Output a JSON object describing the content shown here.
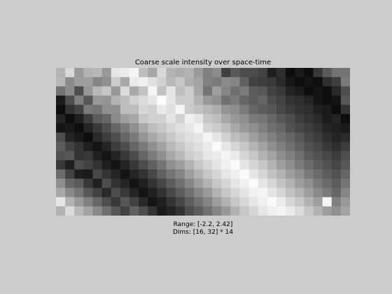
{
  "chart_data": {
    "type": "heatmap",
    "title": "Coarse scale intensity over space-time",
    "range_label": "Range: [-2.2, 2.42]",
    "dims_label": "Dims: [16, 32] * 14",
    "rows": 16,
    "cols": 32,
    "value_range": [
      -2.2,
      2.42
    ],
    "colormap": "gray",
    "axes_visible": false,
    "values": [
      [
        0.7,
        0.85,
        0.6,
        0.7,
        0.72,
        0.6,
        0.9,
        0.92,
        0.96,
        0.75,
        0.65,
        0.85,
        0.7,
        0.68,
        0.7,
        0.6,
        0.5,
        0.55,
        0.25,
        0.35,
        0.3,
        0.3,
        0.26,
        0.12,
        0.18,
        0.05,
        0.1,
        0.05,
        0.22,
        0.35,
        0.45,
        0.45
      ],
      [
        0.72,
        0.55,
        0.62,
        0.62,
        0.52,
        0.56,
        0.8,
        0.66,
        0.92,
        0.94,
        0.88,
        0.82,
        0.72,
        0.78,
        0.68,
        0.64,
        0.5,
        0.48,
        0.55,
        0.52,
        0.38,
        0.26,
        0.24,
        0.22,
        0.16,
        0.09,
        0.05,
        0.08,
        0.05,
        0.18,
        0.24,
        0.48
      ],
      [
        0.45,
        0.55,
        0.3,
        0.6,
        0.72,
        0.78,
        0.6,
        0.86,
        0.66,
        0.76,
        0.96,
        0.76,
        0.9,
        0.74,
        0.8,
        0.65,
        0.45,
        0.62,
        0.52,
        0.44,
        0.48,
        0.36,
        0.34,
        0.26,
        0.22,
        0.14,
        0.1,
        0.05,
        0.08,
        0.05,
        0.16,
        0.3
      ],
      [
        0.1,
        0.3,
        0.5,
        0.34,
        0.6,
        0.58,
        0.7,
        0.74,
        0.82,
        0.86,
        0.9,
        0.99,
        0.9,
        0.8,
        0.8,
        0.7,
        0.6,
        0.56,
        0.44,
        0.48,
        0.4,
        0.36,
        0.4,
        0.3,
        0.26,
        0.2,
        0.18,
        0.14,
        0.08,
        0.05,
        0.08,
        0.34
      ],
      [
        0.05,
        0.2,
        0.26,
        0.48,
        0.45,
        0.56,
        0.56,
        0.74,
        0.74,
        0.84,
        0.82,
        0.92,
        0.88,
        0.96,
        0.8,
        0.76,
        0.72,
        0.68,
        0.58,
        0.55,
        0.48,
        0.4,
        0.36,
        0.34,
        0.28,
        0.24,
        0.2,
        0.18,
        0.12,
        0.1,
        0.05,
        0.2
      ],
      [
        0.14,
        0.05,
        0.12,
        0.24,
        0.36,
        0.4,
        0.54,
        0.62,
        0.66,
        0.78,
        0.82,
        0.82,
        0.9,
        0.82,
        0.94,
        0.9,
        0.78,
        0.74,
        0.66,
        0.6,
        0.56,
        0.48,
        0.46,
        0.4,
        0.34,
        0.3,
        0.24,
        0.2,
        0.16,
        0.1,
        0.14,
        0.05
      ],
      [
        0.08,
        0.1,
        0.05,
        0.14,
        0.22,
        0.3,
        0.4,
        0.48,
        0.56,
        0.66,
        0.74,
        0.78,
        0.84,
        0.88,
        0.9,
        0.96,
        0.84,
        0.8,
        0.74,
        0.66,
        0.6,
        0.56,
        0.5,
        0.44,
        0.4,
        0.32,
        0.28,
        0.24,
        0.2,
        0.14,
        0.12,
        0.1
      ],
      [
        0.3,
        0.14,
        0.1,
        0.05,
        0.16,
        0.24,
        0.3,
        0.4,
        0.48,
        0.58,
        0.66,
        0.72,
        0.78,
        0.84,
        0.88,
        0.9,
        0.96,
        0.9,
        0.82,
        0.74,
        0.7,
        0.62,
        0.56,
        0.5,
        0.44,
        0.4,
        0.34,
        0.28,
        0.24,
        0.18,
        0.14,
        0.16
      ],
      [
        0.36,
        0.26,
        0.2,
        0.12,
        0.08,
        0.14,
        0.24,
        0.3,
        0.4,
        0.48,
        0.56,
        0.64,
        0.72,
        0.78,
        0.84,
        0.88,
        0.92,
        0.98,
        0.9,
        0.84,
        0.78,
        0.7,
        0.64,
        0.56,
        0.5,
        0.44,
        0.38,
        0.32,
        0.28,
        0.22,
        0.18,
        0.24
      ],
      [
        0.32,
        0.34,
        0.2,
        0.22,
        0.12,
        0.08,
        0.14,
        0.22,
        0.3,
        0.4,
        0.48,
        0.56,
        0.66,
        0.72,
        0.8,
        0.84,
        0.9,
        0.92,
        0.96,
        0.92,
        0.84,
        0.78,
        0.7,
        0.64,
        0.56,
        0.5,
        0.44,
        0.36,
        0.32,
        0.28,
        0.24,
        0.3
      ],
      [
        0.22,
        0.12,
        0.3,
        0.26,
        0.2,
        0.12,
        0.08,
        0.14,
        0.22,
        0.3,
        0.38,
        0.46,
        0.56,
        0.62,
        0.7,
        0.78,
        0.84,
        0.9,
        0.94,
        0.98,
        0.9,
        0.84,
        0.78,
        0.7,
        0.62,
        0.56,
        0.48,
        0.42,
        0.36,
        0.32,
        0.28,
        0.34
      ],
      [
        0.42,
        0.26,
        0.12,
        0.1,
        0.28,
        0.2,
        0.14,
        0.08,
        0.14,
        0.2,
        0.28,
        0.38,
        0.46,
        0.52,
        0.62,
        0.7,
        0.78,
        0.84,
        0.9,
        0.94,
        0.98,
        0.9,
        0.84,
        0.76,
        0.7,
        0.62,
        0.56,
        0.48,
        0.42,
        0.36,
        0.32,
        0.4
      ],
      [
        0.56,
        0.4,
        0.36,
        0.22,
        0.12,
        0.3,
        0.2,
        0.14,
        0.08,
        0.12,
        0.2,
        0.28,
        0.36,
        0.44,
        0.52,
        0.62,
        0.7,
        0.78,
        0.84,
        0.9,
        0.94,
        0.98,
        0.9,
        0.84,
        0.76,
        0.7,
        0.62,
        0.56,
        0.48,
        0.42,
        0.36,
        0.46
      ],
      [
        0.66,
        0.54,
        0.46,
        0.34,
        0.26,
        0.16,
        0.3,
        0.22,
        0.14,
        0.08,
        0.12,
        0.2,
        0.28,
        0.36,
        0.44,
        0.52,
        0.6,
        0.7,
        0.78,
        0.84,
        0.9,
        0.94,
        0.96,
        0.9,
        0.84,
        0.76,
        0.7,
        0.62,
        0.54,
        0.48,
        0.4,
        0.52
      ],
      [
        0.9,
        0.7,
        0.6,
        0.5,
        0.4,
        0.3,
        0.22,
        0.34,
        0.26,
        0.16,
        0.08,
        0.12,
        0.2,
        0.28,
        0.36,
        0.44,
        0.52,
        0.62,
        0.7,
        0.78,
        0.84,
        0.9,
        0.94,
        0.98,
        0.92,
        0.84,
        0.78,
        0.7,
        0.62,
        0.96,
        0.5,
        0.6
      ],
      [
        0.7,
        0.86,
        0.72,
        0.64,
        0.54,
        0.44,
        0.34,
        0.26,
        0.38,
        0.3,
        0.2,
        0.1,
        0.14,
        0.2,
        0.3,
        0.36,
        0.44,
        0.52,
        0.6,
        0.7,
        0.78,
        0.84,
        0.9,
        0.94,
        0.96,
        0.92,
        0.86,
        0.78,
        0.7,
        0.62,
        0.56,
        0.64
      ]
    ]
  }
}
